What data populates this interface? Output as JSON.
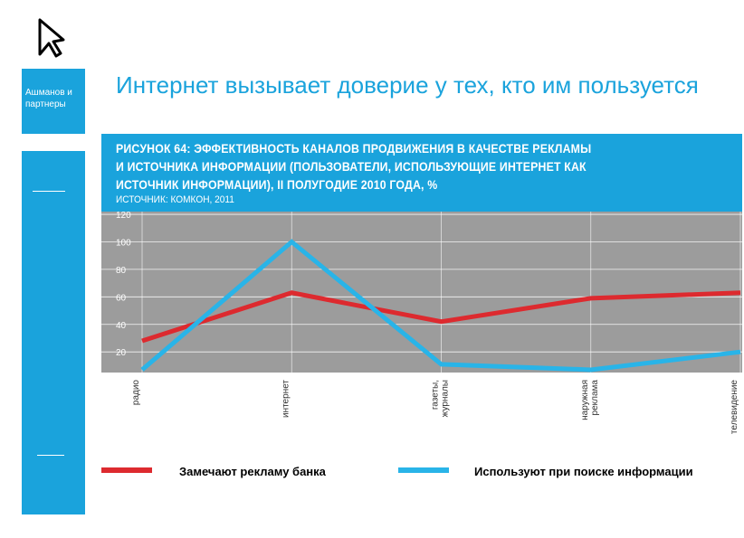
{
  "sidebar": {
    "company": "Ашманов и партнеры"
  },
  "page": {
    "title": "Интернет вызывает доверие у тех, кто им пользуется"
  },
  "chart": {
    "title_line1": "РИСУНОК 64: ЭФФЕКТИВНОСТЬ КАНАЛОВ ПРОДВИЖЕНИЯ В КАЧЕСТВЕ РЕКЛАМЫ",
    "title_line2": "И ИСТОЧНИКА ИНФОРМАЦИИ (ПОЛЬЗОВАТЕЛИ, ИСПОЛЬЗУЮЩИЕ ИНТЕРНЕТ КАК",
    "title_line3": "ИСТОЧНИК ИНФОРМАЦИИ), II ПОЛУГОДИЕ 2010 ГОДА, %",
    "source": "ИСТОЧНИК: КОМКОН, 2011"
  },
  "colors": {
    "accent": "#1aa3dc",
    "plot_bg": "#9c9c9c",
    "series_red": "#dd2a2f",
    "series_blue": "#29b4e8"
  },
  "chart_data": {
    "type": "line",
    "categories": [
      "радио",
      "интернет",
      "газеты, журналы",
      "наружная реклама",
      "телевидение"
    ],
    "category_lines": [
      [
        "радио"
      ],
      [
        "интернет"
      ],
      [
        "газеты,",
        "журналы"
      ],
      [
        "наружная",
        "реклама"
      ],
      [
        "телевидение"
      ]
    ],
    "series": [
      {
        "name": "Замечают рекламу банка",
        "values": [
          28,
          63,
          42,
          59,
          63
        ]
      },
      {
        "name": "Используют при поиске информации",
        "values": [
          7,
          100,
          11,
          7,
          20
        ]
      }
    ],
    "yticks": [
      20,
      40,
      60,
      80,
      100,
      120
    ],
    "ylim": [
      5,
      122
    ],
    "grid": true,
    "legend_position": "bottom"
  }
}
